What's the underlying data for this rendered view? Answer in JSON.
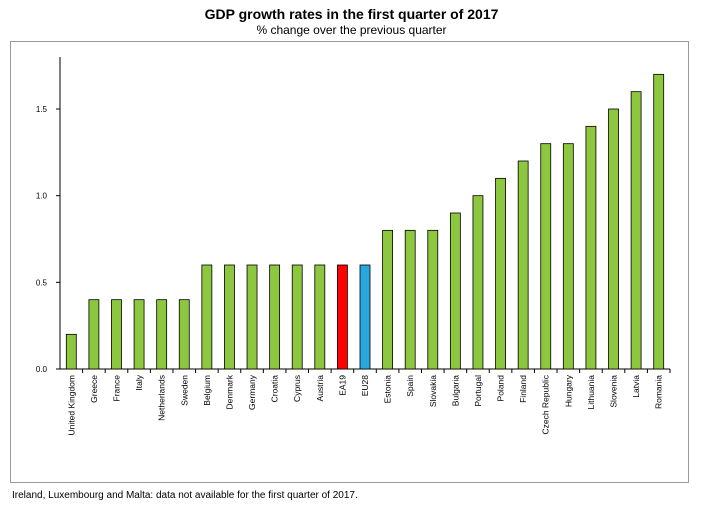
{
  "chart_data": {
    "type": "bar",
    "title": "GDP growth rates in the first quarter of 2017",
    "subtitle": "% change over the previous quarter",
    "xlabel": "",
    "ylabel": "",
    "ylim": [
      0,
      1.8
    ],
    "yticks": [
      0.0,
      0.5,
      1.0,
      1.5
    ],
    "ytick_labels": [
      "0.0",
      "0.5",
      "1.0",
      "1.5"
    ],
    "grid": false,
    "legend": "none",
    "categories": [
      "United Kingdom",
      "Greece",
      "France",
      "Italy",
      "Netherlands",
      "Sweden",
      "Belgium",
      "Denmark",
      "Germany",
      "Croatia",
      "Cyprus",
      "Austria",
      "EA19",
      "EU28",
      "Estonia",
      "Spain",
      "Slovakia",
      "Bulgaria",
      "Portugal",
      "Poland",
      "Finland",
      "Czech Republic",
      "Hungary",
      "Lithuania",
      "Slovenia",
      "Latvia",
      "Romania"
    ],
    "values": [
      0.2,
      0.4,
      0.4,
      0.4,
      0.4,
      0.4,
      0.6,
      0.6,
      0.6,
      0.6,
      0.6,
      0.6,
      0.6,
      0.6,
      0.8,
      0.8,
      0.8,
      0.9,
      1.0,
      1.1,
      1.2,
      1.3,
      1.3,
      1.4,
      1.5,
      1.6,
      1.7
    ],
    "colors": {
      "default": "#8dc63f",
      "EA19": "#ff0000",
      "EU28": "#29a8e0",
      "outline": "#000000"
    }
  },
  "footnote": "Ireland, Luxembourg and Malta: data not available for the first quarter of 2017."
}
